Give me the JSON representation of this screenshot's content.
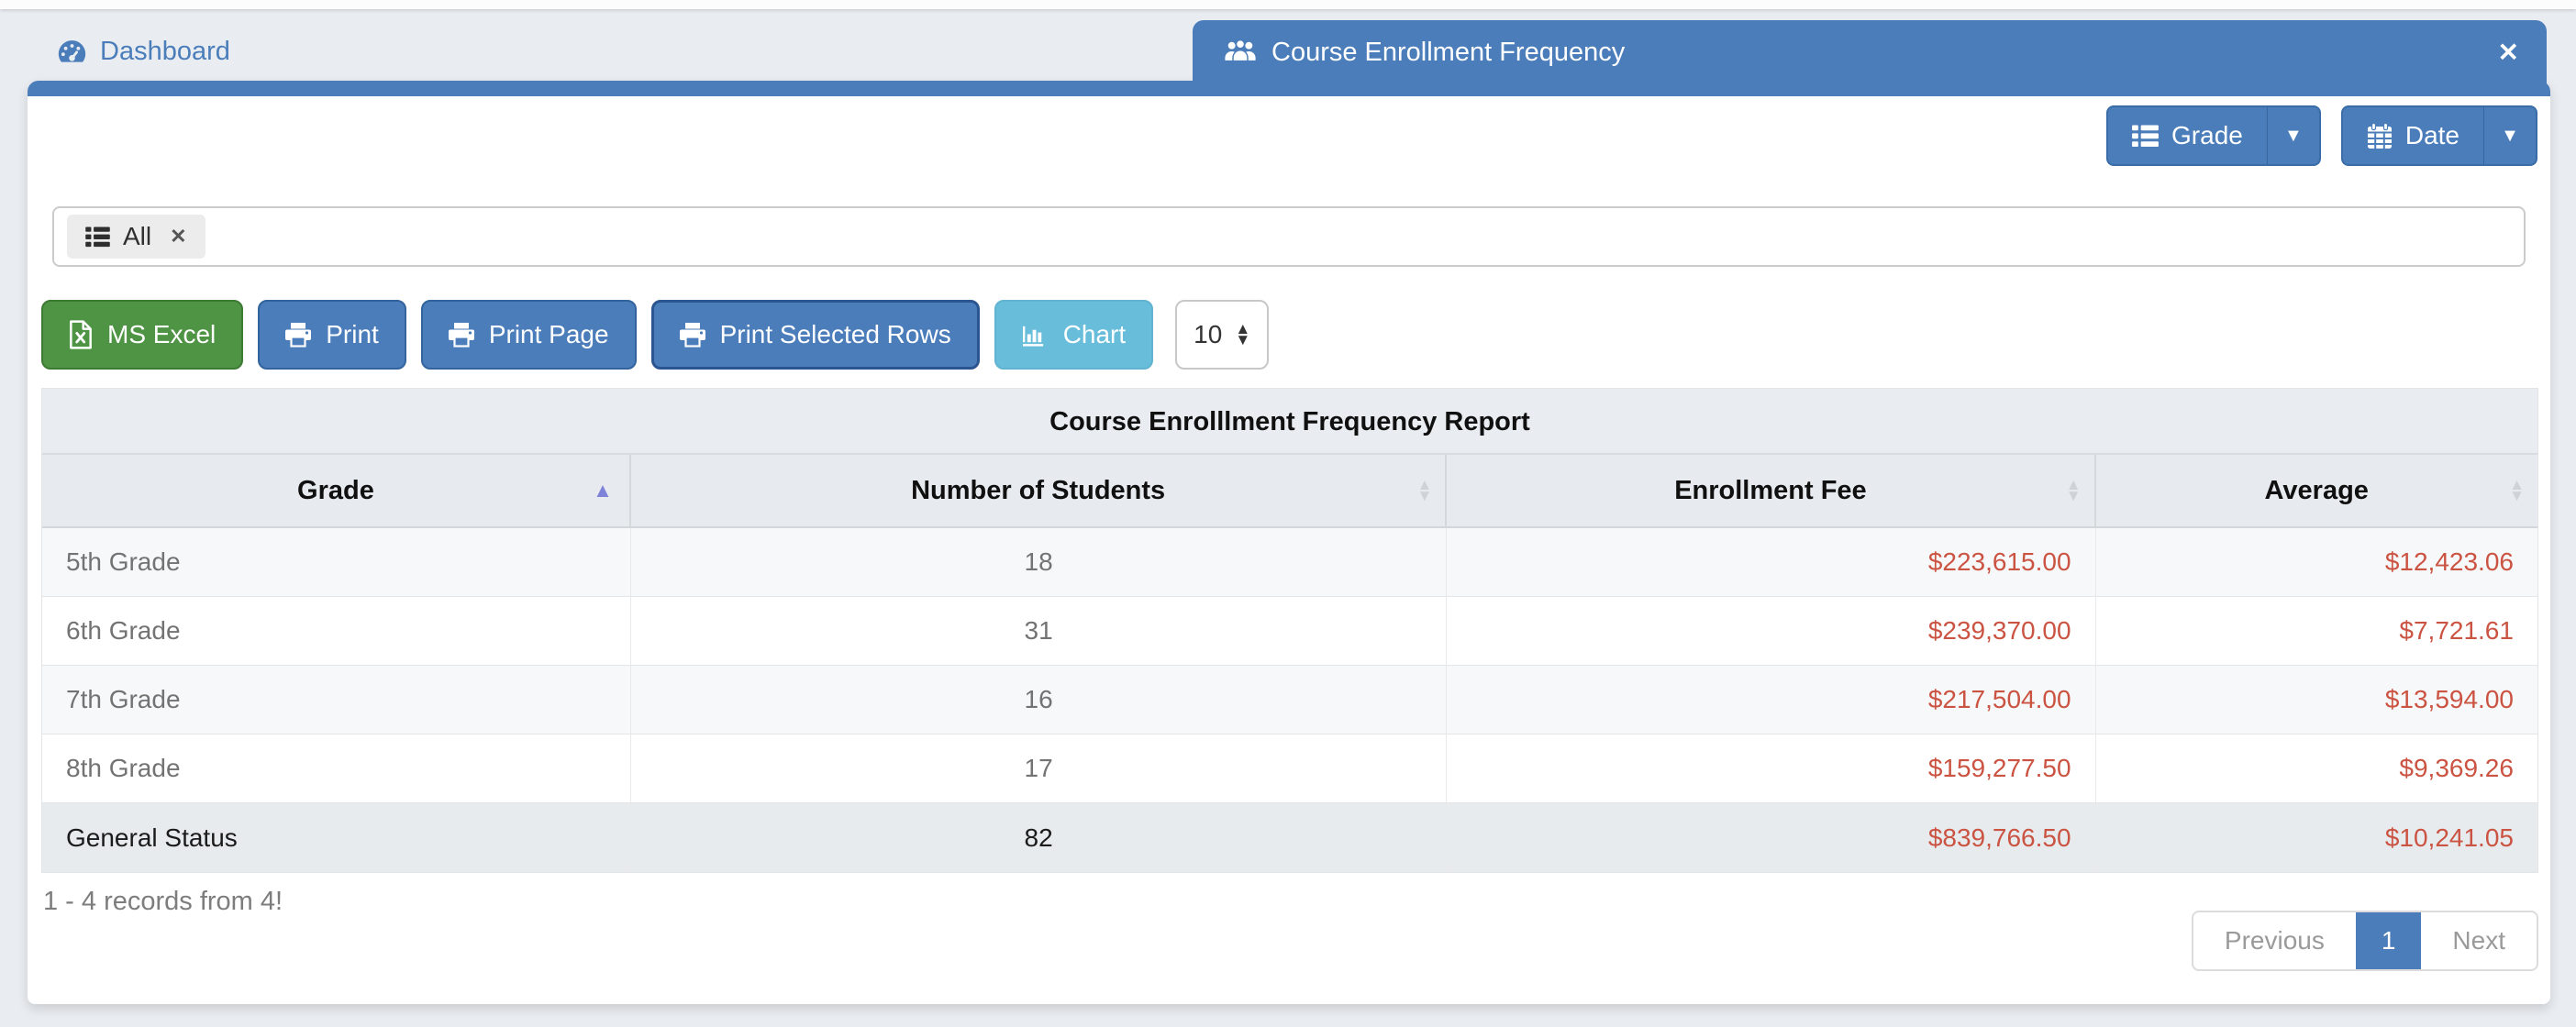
{
  "tabs": {
    "dashboard": "Dashboard",
    "active": "Course Enrollment Frequency"
  },
  "toolbar": {
    "grade": "Grade",
    "date": "Date"
  },
  "filter": {
    "chip": "All"
  },
  "actions": {
    "excel": "MS Excel",
    "print": "Print",
    "print_page": "Print Page",
    "print_selected": "Print Selected Rows",
    "chart": "Chart",
    "page_size": "10"
  },
  "table": {
    "title": "Course Enrolllment Frequency Report",
    "columns": [
      "Grade",
      "Number of Students",
      "Enrollment Fee",
      "Average"
    ],
    "rows": [
      {
        "grade": "5th Grade",
        "students": "18",
        "fee": "$223,615.00",
        "average": "$12,423.06"
      },
      {
        "grade": "6th Grade",
        "students": "31",
        "fee": "$239,370.00",
        "average": "$7,721.61"
      },
      {
        "grade": "7th Grade",
        "students": "16",
        "fee": "$217,504.00",
        "average": "$13,594.00"
      },
      {
        "grade": "8th Grade",
        "students": "17",
        "fee": "$159,277.50",
        "average": "$9,369.26"
      },
      {
        "grade": "General Status",
        "students": "82",
        "fee": "$839,766.50",
        "average": "$10,241.05",
        "summary": true
      }
    ]
  },
  "status": {
    "records_info": "1 - 4 records from 4!"
  },
  "pagination": {
    "previous": "Previous",
    "current": "1",
    "next": "Next"
  },
  "icons": {
    "caret_down": "▼",
    "close": "✕",
    "chip_remove": "✕",
    "sort_asc": "▲",
    "sort_up": "▲",
    "sort_down": "▼",
    "spin_up": "▲",
    "spin_down": "▼"
  },
  "colors": {
    "primary_blue": "#4a7dba",
    "excel_green": "#4f9444",
    "chart_cyan": "#68bdda",
    "money_red": "#cb5342",
    "sort_active_purple": "#7e82d8",
    "page_background": "#e9edf1"
  }
}
